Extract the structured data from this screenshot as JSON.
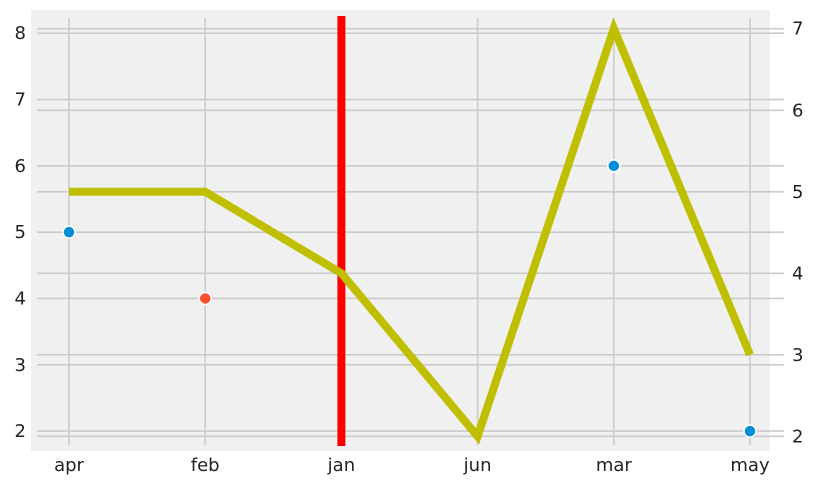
{
  "chart_data": {
    "type": "line",
    "categories": [
      "apr",
      "feb",
      "jan",
      "jun",
      "mar",
      "may"
    ],
    "left_axis": {
      "ylim": [
        1.7,
        8.35
      ],
      "ticks": [
        2,
        3,
        4,
        5,
        6,
        7,
        8
      ]
    },
    "right_axis": {
      "ylim": [
        1.82,
        7.23
      ],
      "ticks": [
        2,
        3,
        4,
        5,
        6,
        7
      ]
    },
    "scatter_points": [
      {
        "x": "apr",
        "y": 5,
        "color": "#008fd5"
      },
      {
        "x": "feb",
        "y": 4,
        "color": "#fc4f30"
      },
      {
        "x": "mar",
        "y": 6,
        "color": "#008fd5"
      },
      {
        "x": "may",
        "y": 2,
        "color": "#008fd5"
      }
    ],
    "line_series": {
      "axis": "right",
      "color": "#bfbf00",
      "points": [
        {
          "x": "apr",
          "y": 5
        },
        {
          "x": "feb",
          "y": 5
        },
        {
          "x": "jan",
          "y": 4
        },
        {
          "x": "jun",
          "y": 2
        },
        {
          "x": "mar",
          "y": 7
        },
        {
          "x": "may",
          "y": 3
        }
      ]
    },
    "vertical_line": {
      "x": "jan",
      "color": "#ff0000"
    },
    "grid": true,
    "background": "#f0f0f0",
    "grid_color": "#cbcbcb",
    "title": "",
    "xlabel": "",
    "ylabel": ""
  }
}
